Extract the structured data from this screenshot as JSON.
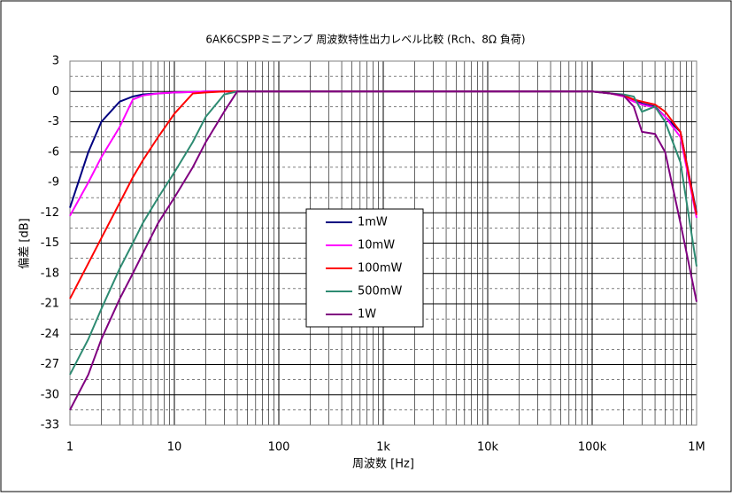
{
  "chart_data": {
    "type": "line",
    "title": "6AK6CSPPミニアンプ 周波数特性出力レベル比較 (Rch、8Ω 負荷)",
    "x_label": "周波数 [Hz]",
    "y_label": "偏差 [dB]",
    "x": [
      1,
      1.5,
      2,
      3,
      4,
      5,
      7,
      10,
      15,
      20,
      30,
      40,
      100,
      1000,
      10000,
      100000,
      150000,
      200000,
      250000,
      300000,
      400000,
      500000,
      700000,
      1000000
    ],
    "series": [
      {
        "name": "1mW",
        "color": "#000080",
        "values": [
          -11.5,
          -6,
          -3,
          -1,
          -0.5,
          -0.3,
          -0.2,
          -0.1,
          -0.05,
          0,
          0,
          0,
          0,
          0,
          0,
          0,
          -0.2,
          -0.4,
          -0.8,
          -1.2,
          -1.5,
          -2.5,
          -4,
          -12
        ]
      },
      {
        "name": "10mW",
        "color": "#ff00ff",
        "values": [
          -12.3,
          -9,
          -6.5,
          -3.5,
          -0.8,
          -0.4,
          -0.2,
          -0.1,
          -0.05,
          0,
          0,
          0,
          0,
          0,
          0,
          0,
          -0.2,
          -0.5,
          -1,
          -1.3,
          -1.6,
          -2.5,
          -4.5,
          -12.5
        ]
      },
      {
        "name": "100mW",
        "color": "#ff0000",
        "values": [
          -20.5,
          -17,
          -14.5,
          -11,
          -8.5,
          -6.8,
          -4.5,
          -2.2,
          -0.2,
          -0.1,
          0,
          0,
          0,
          0,
          0,
          0,
          -0.2,
          -0.4,
          -0.8,
          -1,
          -1.3,
          -2,
          -4,
          -12.2
        ]
      },
      {
        "name": "500mW",
        "color": "#2e8b72",
        "values": [
          -28,
          -24.5,
          -21.5,
          -17.5,
          -15,
          -13,
          -10.5,
          -8,
          -5,
          -2.5,
          -0.3,
          0,
          0,
          0,
          0,
          0,
          -0.2,
          -0.3,
          -0.5,
          -2,
          -1.5,
          -3,
          -7,
          -17.3
        ]
      },
      {
        "name": "1W",
        "color": "#800080",
        "values": [
          -31.5,
          -28,
          -24.5,
          -20.5,
          -18,
          -16,
          -13,
          -10.5,
          -7.5,
          -5,
          -2,
          0,
          0,
          0,
          0,
          0,
          -0.2,
          -0.4,
          -1.5,
          -4,
          -4.2,
          -6,
          -13,
          -20.8
        ]
      }
    ],
    "log_x": true,
    "xlim": [
      1,
      1000000
    ],
    "xticks": [
      1,
      10,
      100,
      {
        "value": 1000,
        "label": "1k"
      },
      {
        "value": 10000,
        "label": "10k"
      },
      {
        "value": 100000,
        "label": "100k"
      },
      {
        "value": 1000000,
        "label": "1M"
      }
    ],
    "ylim": [
      -33,
      3
    ],
    "yticks": [
      -33,
      -30,
      -27,
      -24,
      -21,
      -18,
      -15,
      -12,
      -9,
      -6,
      -3,
      0,
      3
    ],
    "grid": true
  }
}
